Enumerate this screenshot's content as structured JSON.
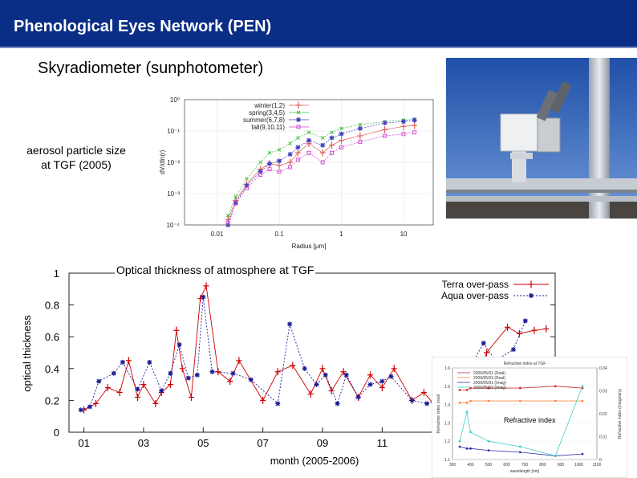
{
  "header": {
    "title": "Phenological Eyes Network (PEN)"
  },
  "subtitle": "Skyradiometer (sunphotometer)",
  "aerosol_label": {
    "line1": "aerosol particle size",
    "line2": "at TGF (2005)"
  },
  "optical_title": "Optical thickness of atmosphere at TGF",
  "refractive_label": "Refractive index",
  "colors": {
    "header_bg": "#0a2d86",
    "terra": "#cc0000",
    "aqua": "#1a1a99"
  },
  "chart_data": [
    {
      "type": "line",
      "xlabel": "Radius [μm]",
      "ylabel": "dV/dln(r)",
      "xscale": "log",
      "yscale": "log",
      "xlim": [
        0.003,
        30
      ],
      "ylim": [
        0.0001,
        1
      ],
      "xticks": [
        "0.01",
        "0.1",
        "1",
        "10"
      ],
      "yticks": [
        "10⁰",
        "10⁻¹",
        "10⁻²",
        "10⁻³",
        "10⁻⁴"
      ],
      "legend_position": "top-right",
      "x": [
        0.015,
        0.02,
        0.03,
        0.05,
        0.07,
        0.1,
        0.15,
        0.2,
        0.3,
        0.5,
        0.7,
        1,
        2,
        5,
        10,
        15
      ],
      "series": [
        {
          "name": "winter(1,2)",
          "color": "#e06060",
          "values": [
            0.00015,
            0.0006,
            0.002,
            0.006,
            0.009,
            0.008,
            0.01,
            0.02,
            0.04,
            0.02,
            0.035,
            0.05,
            0.07,
            0.11,
            0.14,
            0.15
          ]
        },
        {
          "name": "spring(3,4,5)",
          "color": "#40c040",
          "values": [
            0.0002,
            0.0008,
            0.003,
            0.01,
            0.02,
            0.025,
            0.04,
            0.06,
            0.09,
            0.06,
            0.09,
            0.12,
            0.16,
            0.2,
            0.22,
            0.24
          ]
        },
        {
          "name": "summer(6,7,8)",
          "color": "#4040c0",
          "values": [
            0.0001,
            0.0005,
            0.0018,
            0.005,
            0.009,
            0.011,
            0.018,
            0.03,
            0.05,
            0.035,
            0.06,
            0.08,
            0.12,
            0.18,
            0.2,
            0.22
          ]
        },
        {
          "name": "fall(9,10,11)",
          "color": "#d040d0",
          "values": [
            0.00012,
            0.0005,
            0.0015,
            0.004,
            0.006,
            0.005,
            0.007,
            0.012,
            0.02,
            0.01,
            0.02,
            0.03,
            0.045,
            0.07,
            0.08,
            0.09
          ]
        }
      ]
    },
    {
      "type": "line",
      "xlabel": "month (2005-2006)",
      "ylabel": "optical thickness",
      "ylim": [
        0,
        1
      ],
      "xlim": [
        0.5,
        16.8
      ],
      "xticks": [
        "01",
        "03",
        "05",
        "07",
        "09",
        "11",
        "01"
      ],
      "yticks": [
        "0",
        "0.2",
        "0.4",
        "0.6",
        "0.8",
        "1"
      ],
      "legend_position": "top-right",
      "series": [
        {
          "name": "Terra over-pass",
          "color": "#cc0000",
          "x": [
            1.0,
            1.4,
            1.8,
            2.2,
            2.5,
            2.8,
            3.0,
            3.4,
            3.6,
            3.9,
            4.1,
            4.3,
            4.6,
            4.9,
            5.1,
            5.5,
            5.9,
            6.2,
            7.0,
            7.5,
            8.0,
            8.6,
            9.0,
            9.3,
            9.7,
            10.2,
            10.6,
            11.0,
            11.4,
            12.0,
            12.4,
            12.8,
            13.0,
            13.5,
            14.0,
            14.5,
            15.2,
            15.6,
            16.1,
            16.5
          ],
          "values": [
            0.14,
            0.18,
            0.28,
            0.25,
            0.45,
            0.22,
            0.3,
            0.18,
            0.25,
            0.3,
            0.64,
            0.4,
            0.22,
            0.84,
            0.92,
            0.38,
            0.32,
            0.45,
            0.2,
            0.38,
            0.42,
            0.24,
            0.4,
            0.26,
            0.38,
            0.22,
            0.36,
            0.28,
            0.4,
            0.2,
            0.25,
            0.16,
            0.2,
            0.35,
            0.23,
            0.5,
            0.66,
            0.62,
            0.64,
            0.65
          ]
        },
        {
          "name": "Aqua over-pass",
          "color": "#1a1a99",
          "x": [
            0.9,
            1.2,
            1.5,
            2.0,
            2.3,
            2.8,
            3.2,
            3.6,
            3.9,
            4.2,
            4.5,
            4.8,
            5.0,
            5.3,
            6.0,
            6.6,
            7.5,
            7.9,
            8.4,
            8.8,
            9.1,
            9.5,
            9.8,
            10.2,
            10.6,
            11.0,
            11.3,
            12.0,
            12.5,
            13.2,
            13.8,
            14.4,
            14.8,
            15.4,
            15.8
          ],
          "values": [
            0.14,
            0.16,
            0.32,
            0.37,
            0.44,
            0.27,
            0.44,
            0.26,
            0.37,
            0.55,
            0.34,
            0.36,
            0.85,
            0.38,
            0.37,
            0.33,
            0.18,
            0.68,
            0.4,
            0.3,
            0.36,
            0.18,
            0.36,
            0.22,
            0.3,
            0.32,
            0.35,
            0.2,
            0.18,
            0.22,
            0.36,
            0.56,
            0.45,
            0.52,
            0.7
          ]
        }
      ]
    },
    {
      "type": "line",
      "title": "Refractive index at TGF",
      "xlabel": "wavelength [nm]",
      "ylabel": "Refractive index (real)",
      "y2label": "Refractive index (imaginary)",
      "xlim": [
        300,
        1100
      ],
      "ylim": [
        1.1,
        1.6
      ],
      "xticks": [
        "300",
        "400",
        "500",
        "600",
        "700",
        "800",
        "900",
        "1000",
        "1100"
      ],
      "yticks": [
        "1.1",
        "1.2",
        "1.3",
        "1.4",
        "1.5",
        "1.6"
      ],
      "y2ticks": [
        "0",
        "0.01",
        "0.02",
        "0.03",
        "0.04"
      ],
      "legend_position": "top-left",
      "x": [
        340,
        380,
        400,
        500,
        675,
        870,
        1020
      ],
      "series": [
        {
          "name": "2006/05/01 (Real)",
          "color": "#cc3333",
          "values": [
            1.48,
            1.48,
            1.49,
            1.49,
            1.49,
            1.5,
            1.49
          ]
        },
        {
          "name": "2006/05/03 (Real)",
          "color": "#ff8844",
          "values": [
            1.41,
            1.41,
            1.42,
            1.42,
            1.42,
            1.42,
            1.42
          ]
        },
        {
          "name": "2006/05/01 (Imag)",
          "color": "#3333aa",
          "values": [
            1.17,
            1.16,
            1.16,
            1.15,
            1.14,
            1.12,
            1.13
          ]
        },
        {
          "name": "2006/05/03 (Imag)",
          "color": "#44cccc",
          "values": [
            1.2,
            1.36,
            1.25,
            1.2,
            1.17,
            1.12,
            1.5
          ]
        }
      ]
    }
  ]
}
